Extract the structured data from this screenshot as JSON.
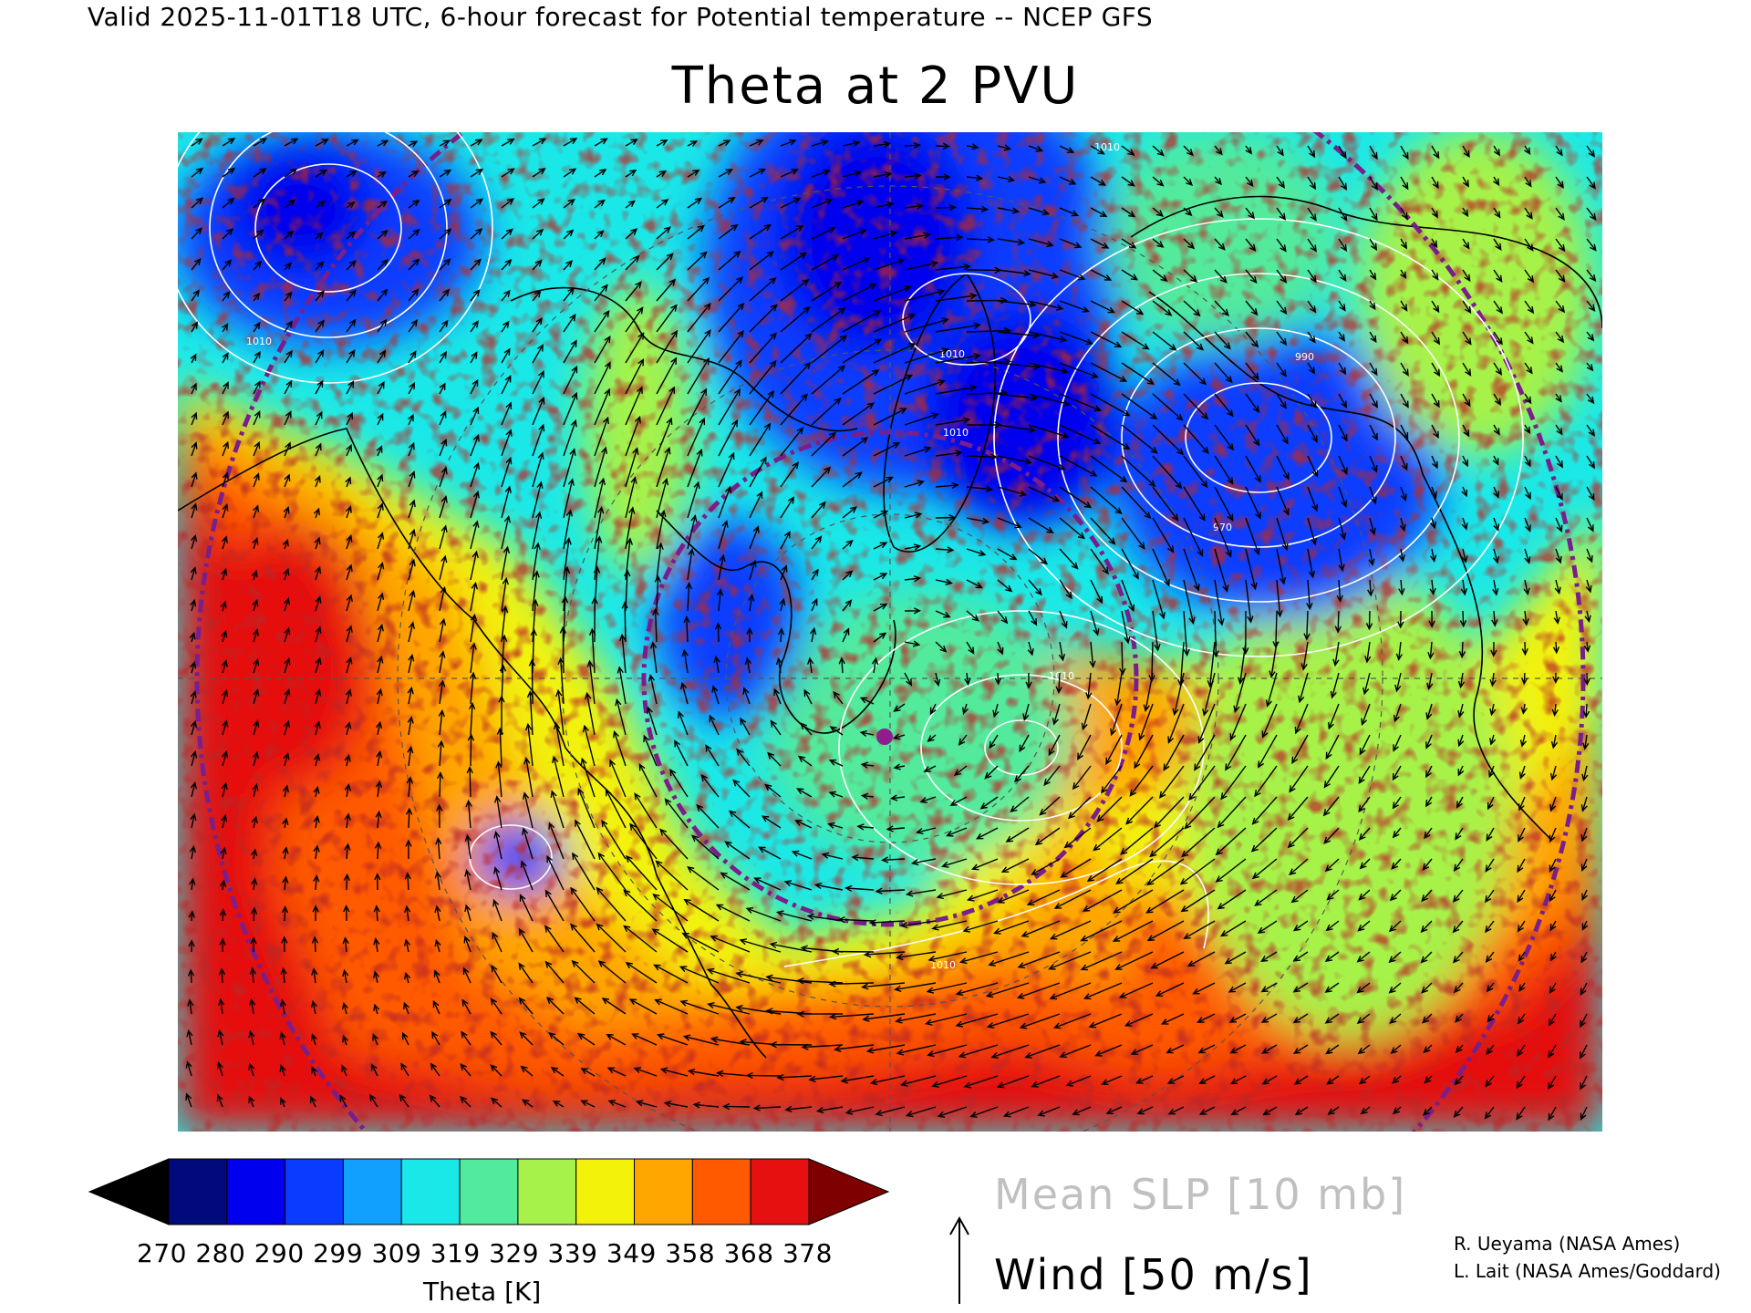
{
  "header": {
    "valid_line": "Valid 2025-11-01T18 UTC, 6-hour forecast for Potential temperature -- NCEP GFS",
    "title": "Theta at 2 PVU"
  },
  "colorbar": {
    "ticks": [
      "270",
      "280",
      "290",
      "299",
      "309",
      "319",
      "329",
      "339",
      "349",
      "358",
      "368",
      "378"
    ],
    "colors": [
      "#000000",
      "#000a7a",
      "#0000ee",
      "#0a3cff",
      "#12a0ff",
      "#1ae8e8",
      "#52ea9c",
      "#a6f24a",
      "#f2f20a",
      "#ffa600",
      "#ff5a00",
      "#e61010",
      "#7e0000"
    ],
    "label": "Theta [K]"
  },
  "legend": {
    "slp": "Mean SLP [10 mb]",
    "wind": "Wind [50 m/s]"
  },
  "credits": [
    "R. Ueyama (NASA Ames)",
    "L. Lait (NASA Ames/Goddard)"
  ],
  "map": {
    "contour_labels": [
      "1010",
      "1010",
      "1010",
      "1010",
      "990",
      "970",
      "1010",
      "1010"
    ],
    "overlay_colors": {
      "slp_contour": "#ffffff",
      "coastline": "#000000",
      "wind_arrow": "#000000",
      "grid_circle": "#7a1e8c",
      "marker": "#8e1e8e"
    }
  }
}
